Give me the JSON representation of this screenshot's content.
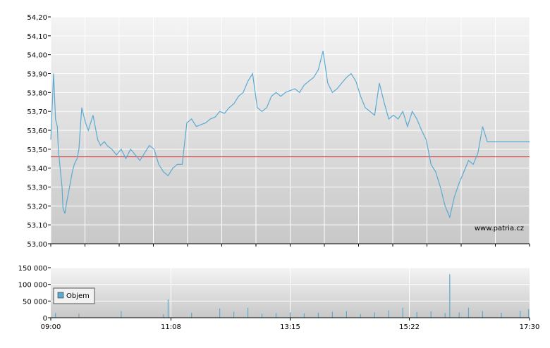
{
  "watermark": "www.patria.cz",
  "colors": {
    "price_line": "#5aaad2",
    "reference_line": "#d03030",
    "volume_bar": "#5aaad2",
    "grid": "#ffffff",
    "plot_bg_top": "#f4f4f4",
    "plot_bg_bottom": "#c8c8c8"
  },
  "chart_data": [
    {
      "type": "line",
      "name": "price",
      "ylim": [
        53.0,
        54.2
      ],
      "yticks": [
        "54,20",
        "54,10",
        "54,00",
        "53,90",
        "53,80",
        "53,70",
        "53,60",
        "53,50",
        "53,40",
        "53,30",
        "53,20",
        "53,10",
        "53,00"
      ],
      "reference_value": 53.46,
      "grid": true,
      "series": [
        {
          "x": [
            "09:00",
            "09:03",
            "09:05",
            "09:07",
            "09:08",
            "09:10",
            "09:12",
            "09:13",
            "09:15",
            "09:17",
            "09:20",
            "09:23",
            "09:25",
            "09:28",
            "09:30",
            "09:33",
            "09:37",
            "09:40",
            "09:45",
            "09:50",
            "09:53",
            "09:57",
            "10:00",
            "10:05",
            "10:10",
            "10:15",
            "10:20",
            "10:25",
            "10:30",
            "10:35",
            "10:40",
            "10:45",
            "10:50",
            "10:55",
            "11:00",
            "11:05",
            "11:10",
            "11:15",
            "11:20",
            "11:25",
            "11:30",
            "11:35",
            "11:40",
            "11:45",
            "11:50",
            "11:55",
            "12:00",
            "12:05",
            "12:10",
            "12:15",
            "12:20",
            "12:25",
            "12:30",
            "12:35",
            "12:40",
            "12:45",
            "12:50",
            "12:55",
            "13:00",
            "13:05",
            "13:10",
            "13:15",
            "13:20",
            "13:25",
            "13:30",
            "13:35",
            "13:40",
            "13:45",
            "13:50",
            "13:55",
            "14:00",
            "14:05",
            "14:10",
            "14:15",
            "14:20",
            "14:25",
            "14:30",
            "14:35",
            "14:40",
            "14:45",
            "14:50",
            "14:55",
            "15:00",
            "15:05",
            "15:10",
            "15:15",
            "15:20",
            "15:25",
            "15:30",
            "15:35",
            "15:40",
            "15:45",
            "15:50",
            "15:55",
            "16:00",
            "16:05",
            "16:10",
            "16:15",
            "16:20",
            "16:25",
            "16:30",
            "16:35",
            "16:40",
            "16:45",
            "16:50",
            "16:55",
            "17:00",
            "17:05",
            "17:10",
            "17:15",
            "17:20",
            "17:25",
            "17:28",
            "17:30"
          ],
          "values": [
            53.55,
            53.9,
            53.66,
            53.62,
            53.5,
            53.4,
            53.3,
            53.19,
            53.16,
            53.22,
            53.3,
            53.38,
            53.42,
            53.45,
            53.5,
            53.72,
            53.64,
            53.6,
            53.68,
            53.55,
            53.52,
            53.54,
            53.52,
            53.5,
            53.47,
            53.5,
            53.45,
            53.5,
            53.47,
            53.44,
            53.48,
            53.52,
            53.5,
            53.42,
            53.38,
            53.36,
            53.4,
            53.42,
            53.42,
            53.64,
            53.66,
            53.62,
            53.63,
            53.64,
            53.66,
            53.67,
            53.7,
            53.69,
            53.72,
            53.74,
            53.78,
            53.8,
            53.86,
            53.9,
            53.72,
            53.7,
            53.72,
            53.78,
            53.8,
            53.78,
            53.8,
            53.81,
            53.82,
            53.8,
            53.84,
            53.86,
            53.88,
            53.92,
            54.02,
            53.85,
            53.8,
            53.82,
            53.85,
            53.88,
            53.9,
            53.86,
            53.78,
            53.72,
            53.7,
            53.68,
            53.85,
            53.75,
            53.66,
            53.68,
            53.66,
            53.7,
            53.62,
            53.7,
            53.66,
            53.6,
            53.55,
            53.42,
            53.38,
            53.3,
            53.2,
            53.14,
            53.25,
            53.32,
            53.38,
            53.44,
            53.42,
            53.48,
            53.62,
            53.54,
            53.54,
            53.54,
            53.54,
            53.54,
            53.54,
            53.54,
            53.54,
            53.54,
            53.54,
            53.54
          ]
        }
      ]
    },
    {
      "type": "bar",
      "name": "volume",
      "ylim": [
        0,
        150000
      ],
      "yticks": [
        "150 000",
        "100 000",
        "50 000",
        "0"
      ],
      "xticks": [
        "09:00",
        "11:08",
        "13:15",
        "15:22",
        "17:30"
      ],
      "legend": "Objem",
      "legend_position": "bottom-left",
      "series": [
        {
          "name": "Objem",
          "x": [
            "09:05",
            "09:30",
            "10:15",
            "11:00",
            "11:05",
            "11:30",
            "12:00",
            "12:15",
            "12:30",
            "12:45",
            "13:00",
            "13:15",
            "13:30",
            "13:45",
            "14:00",
            "14:15",
            "14:30",
            "14:45",
            "15:00",
            "15:15",
            "15:30",
            "15:45",
            "16:00",
            "16:05",
            "16:15",
            "16:25",
            "16:40",
            "17:00",
            "17:20",
            "17:29"
          ],
          "values": [
            14000,
            12000,
            20000,
            10000,
            55000,
            15000,
            28000,
            18000,
            30000,
            12000,
            14000,
            16000,
            13000,
            15000,
            18000,
            20000,
            11000,
            16000,
            22000,
            30000,
            17000,
            19000,
            14000,
            130000,
            16000,
            30000,
            20000,
            15000,
            21000,
            26000
          ]
        }
      ]
    }
  ]
}
